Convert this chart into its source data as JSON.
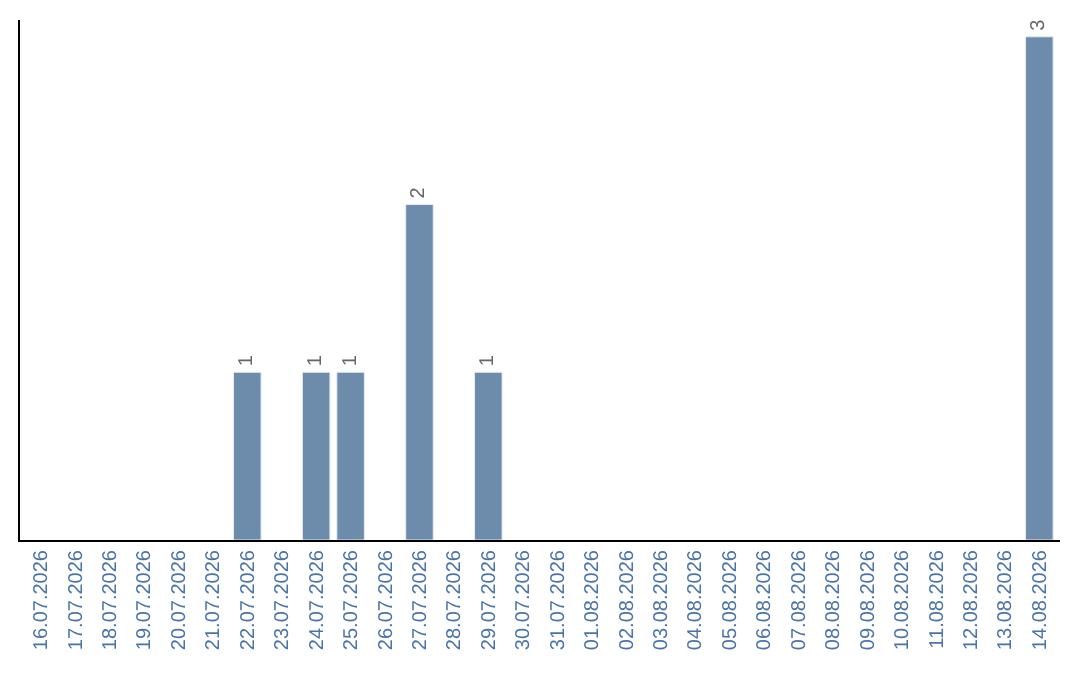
{
  "chart_data": {
    "type": "bar",
    "categories": [
      "16.07.2026",
      "17.07.2026",
      "18.07.2026",
      "19.07.2026",
      "20.07.2026",
      "21.07.2026",
      "22.07.2026",
      "23.07.2026",
      "24.07.2026",
      "25.07.2026",
      "26.07.2026",
      "27.07.2026",
      "28.07.2026",
      "29.07.2026",
      "30.07.2026",
      "31.07.2026",
      "01.08.2026",
      "02.08.2026",
      "03.08.2026",
      "04.08.2026",
      "05.08.2026",
      "06.08.2026",
      "07.08.2026",
      "08.08.2026",
      "09.08.2026",
      "10.08.2026",
      "11.08.2026",
      "12.08.2026",
      "13.08.2026",
      "14.08.2026"
    ],
    "values": [
      null,
      null,
      null,
      null,
      null,
      null,
      1,
      null,
      1,
      1,
      null,
      2,
      null,
      1,
      null,
      null,
      null,
      null,
      null,
      null,
      null,
      null,
      null,
      null,
      null,
      null,
      null,
      null,
      null,
      3
    ],
    "value_labels": [
      null,
      null,
      null,
      null,
      null,
      null,
      "1",
      null,
      "1",
      "1",
      null,
      "2",
      null,
      "1",
      null,
      null,
      null,
      null,
      null,
      null,
      null,
      null,
      null,
      null,
      null,
      null,
      null,
      null,
      null,
      "3"
    ],
    "color": "#6d8cab",
    "ylim": [
      0,
      3.1
    ],
    "tick_labels": "x"
  }
}
